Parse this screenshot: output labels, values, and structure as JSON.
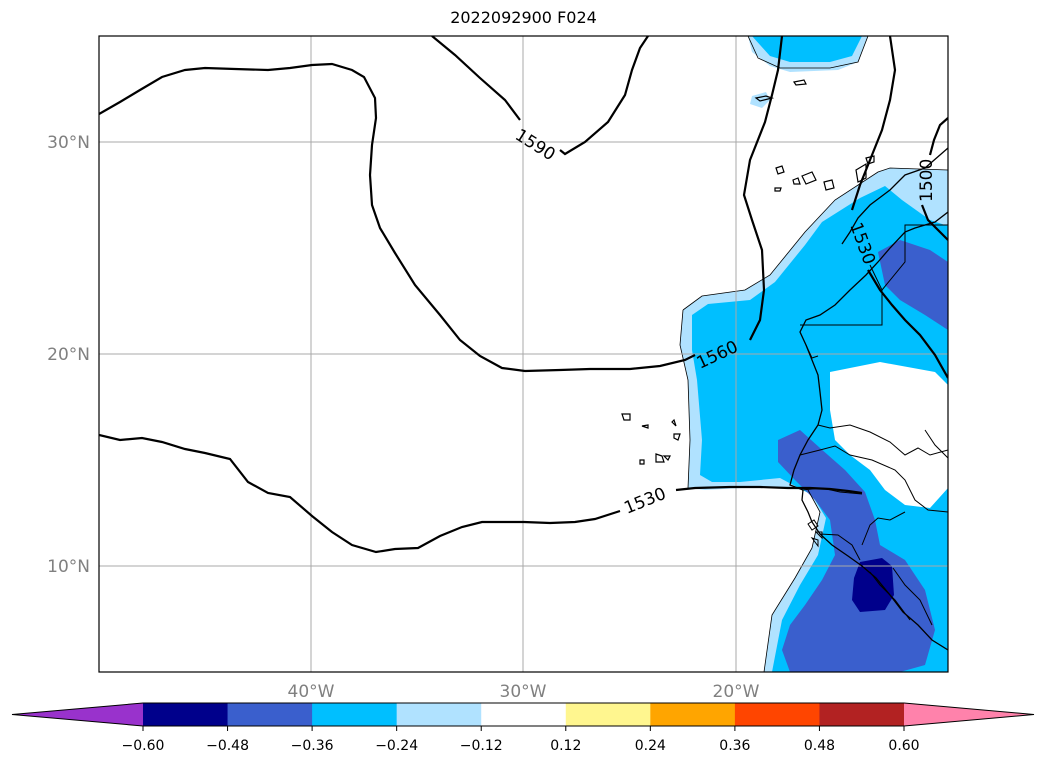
{
  "title": "2022092900 F024",
  "map": {
    "lat_ticks": [
      "30°N",
      "20°N",
      "10°N"
    ],
    "lon_ticks": [
      "40°W",
      "30°W",
      "20°W"
    ],
    "grid": true
  },
  "contours": [
    {
      "label": "1590"
    },
    {
      "label": "1560"
    },
    {
      "label": "1530"
    },
    {
      "label": "1530"
    },
    {
      "label": "1500"
    }
  ],
  "colorbar": {
    "tick_labels": [
      "−0.60",
      "−0.48",
      "−0.36",
      "−0.24",
      "−0.12",
      "0.12",
      "0.24",
      "0.36",
      "0.48",
      "0.60"
    ],
    "colors": [
      "#9932cc",
      "#00008b",
      "#3a5fcd",
      "#00bfff",
      "#b0e2ff",
      "#ffffff",
      "#fff68f",
      "#ffa500",
      "#ff4500",
      "#b22222",
      "#ff82ab"
    ],
    "extend": "both"
  }
}
